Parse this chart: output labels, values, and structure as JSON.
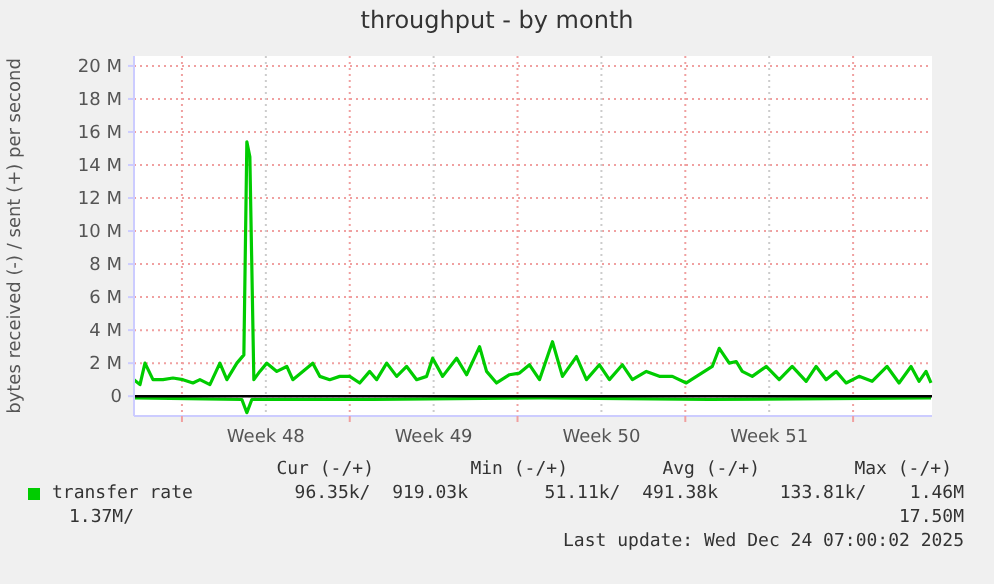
{
  "chart_data": {
    "type": "line",
    "title": "throughput - by month",
    "ylabel": "bytes received (-) / sent (+) per second",
    "xlim": [
      "2025-11-21T00:00",
      "2025-12-24T07:00"
    ],
    "xticks": [
      {
        "value": "2025-11-23T00:00",
        "label": null
      },
      {
        "value": "2025-11-26T12:00",
        "label": "Week 48"
      },
      {
        "value": "2025-11-30T00:00",
        "label": null
      },
      {
        "value": "2025-12-03T12:00",
        "label": "Week 49"
      },
      {
        "value": "2025-12-07T00:00",
        "label": null
      },
      {
        "value": "2025-12-10T12:00",
        "label": "Week 50"
      },
      {
        "value": "2025-12-14T00:00",
        "label": null
      },
      {
        "value": "2025-12-17T12:00",
        "label": "Week 51"
      },
      {
        "value": "2025-12-21T00:00",
        "label": null
      }
    ],
    "ylim": [
      -1.2,
      20.6
    ],
    "yticks": [
      {
        "value": 0,
        "label": "0"
      },
      {
        "value": 2,
        "label": "2 M"
      },
      {
        "value": 4,
        "label": "4 M"
      },
      {
        "value": 6,
        "label": "6 M"
      },
      {
        "value": 8,
        "label": "8 M"
      },
      {
        "value": 10,
        "label": "10 M"
      },
      {
        "value": 12,
        "label": "12 M"
      },
      {
        "value": 14,
        "label": "14 M"
      },
      {
        "value": 16,
        "label": "16 M"
      },
      {
        "value": 18,
        "label": "18 M"
      },
      {
        "value": 20,
        "label": "20 M"
      }
    ],
    "grid": true,
    "legend": "bottom",
    "ref_lines": [
      {
        "axis": "y",
        "value": 0,
        "color": "#000000"
      }
    ],
    "series": [
      {
        "name": "transfer rate",
        "color": "#00cc00",
        "x": [
          "2025-11-21T00:00",
          "2025-11-21T06:00",
          "2025-11-21T11:00",
          "2025-11-21T19:00",
          "2025-11-22T05:00",
          "2025-11-22T15:00",
          "2025-11-23T01:00",
          "2025-11-23T11:00",
          "2025-11-23T18:00",
          "2025-11-24T04:00",
          "2025-11-24T14:00",
          "2025-11-24T21:00",
          "2025-11-25T07:00",
          "2025-11-25T14:00",
          "2025-11-25T17:00",
          "2025-11-25T20:00",
          "2025-11-26T00:00",
          "2025-11-26T06:00",
          "2025-11-26T13:00",
          "2025-11-26T23:00",
          "2025-11-27T09:00",
          "2025-11-27T15:00",
          "2025-11-28T01:00",
          "2025-11-28T11:00",
          "2025-11-28T18:00",
          "2025-11-29T04:00",
          "2025-11-29T14:00",
          "2025-11-30T00:00",
          "2025-11-30T10:00",
          "2025-11-30T20:00",
          "2025-12-01T03:00",
          "2025-12-01T13:00",
          "2025-12-01T23:00",
          "2025-12-02T09:00",
          "2025-12-02T19:00",
          "2025-12-03T05:00",
          "2025-12-03T11:00",
          "2025-12-03T21:00",
          "2025-12-04T11:00",
          "2025-12-04T21:00",
          "2025-12-05T10:00",
          "2025-12-05T17:00",
          "2025-12-06T03:00",
          "2025-12-06T16:00",
          "2025-12-07T02:00",
          "2025-12-07T12:00",
          "2025-12-07T22:00",
          "2025-12-08T11:00",
          "2025-12-08T21:00",
          "2025-12-09T11:00",
          "2025-12-09T21:00",
          "2025-12-10T10:00",
          "2025-12-10T20:00",
          "2025-12-11T09:00",
          "2025-12-11T19:00",
          "2025-12-12T09:00",
          "2025-12-12T22:00",
          "2025-12-13T11:00",
          "2025-12-14T01:00",
          "2025-12-14T14:00",
          "2025-12-15T03:00",
          "2025-12-15T10:00",
          "2025-12-15T20:00",
          "2025-12-16T03:00",
          "2025-12-16T09:00",
          "2025-12-16T19:00",
          "2025-12-17T09:00",
          "2025-12-17T22:00",
          "2025-12-18T11:00",
          "2025-12-19T01:00",
          "2025-12-19T11:00",
          "2025-12-19T21:00",
          "2025-12-20T07:00",
          "2025-12-20T17:00",
          "2025-12-21T06:00",
          "2025-12-21T19:00",
          "2025-12-22T10:00",
          "2025-12-22T22:00",
          "2025-12-23T10:00",
          "2025-12-23T18:00",
          "2025-12-24T01:00",
          "2025-12-24T06:00"
        ],
        "values": [
          1.0,
          0.7,
          2.0,
          1.0,
          1.0,
          1.1,
          1.0,
          0.8,
          1.0,
          0.7,
          2.0,
          1.0,
          2.0,
          2.5,
          15.4,
          14.5,
          1.0,
          1.5,
          2.0,
          1.5,
          1.8,
          1.0,
          1.5,
          2.0,
          1.2,
          1.0,
          1.2,
          1.2,
          0.8,
          1.5,
          1.0,
          2.0,
          1.2,
          1.8,
          1.0,
          1.2,
          2.3,
          1.2,
          2.3,
          1.3,
          3.0,
          1.5,
          0.8,
          1.3,
          1.4,
          1.9,
          1.0,
          3.3,
          1.2,
          2.4,
          1.0,
          1.9,
          1.0,
          1.9,
          1.0,
          1.5,
          1.2,
          1.2,
          0.8,
          1.3,
          1.8,
          2.9,
          2.0,
          2.1,
          1.5,
          1.2,
          1.8,
          1.0,
          1.8,
          0.9,
          1.8,
          1.0,
          1.5,
          0.8,
          1.2,
          0.9,
          1.8,
          0.8,
          1.8,
          0.9,
          1.5,
          0.8
        ]
      },
      {
        "color": "#00cc00",
        "x": [
          "2025-11-21T00:00",
          "2025-11-25T12:00",
          "2025-11-25T17:00",
          "2025-11-25T22:00",
          "2025-12-01T00:00",
          "2025-12-08T00:00",
          "2025-12-15T00:00",
          "2025-12-24T06:00"
        ],
        "values": [
          -0.1,
          -0.2,
          -1.0,
          -0.2,
          -0.2,
          -0.1,
          -0.2,
          -0.1
        ]
      }
    ],
    "annotations": [
      "Cur (-/+)",
      "Min (-/+)",
      "Avg (-/+)",
      "Max (-/+)",
      "96.35k/  919.03k",
      "51.11k/  491.38k",
      "133.81k/    1.46M",
      "1.37M/",
      "17.50M",
      "Last update: Wed Dec 24 07:00:02 2025"
    ]
  }
}
